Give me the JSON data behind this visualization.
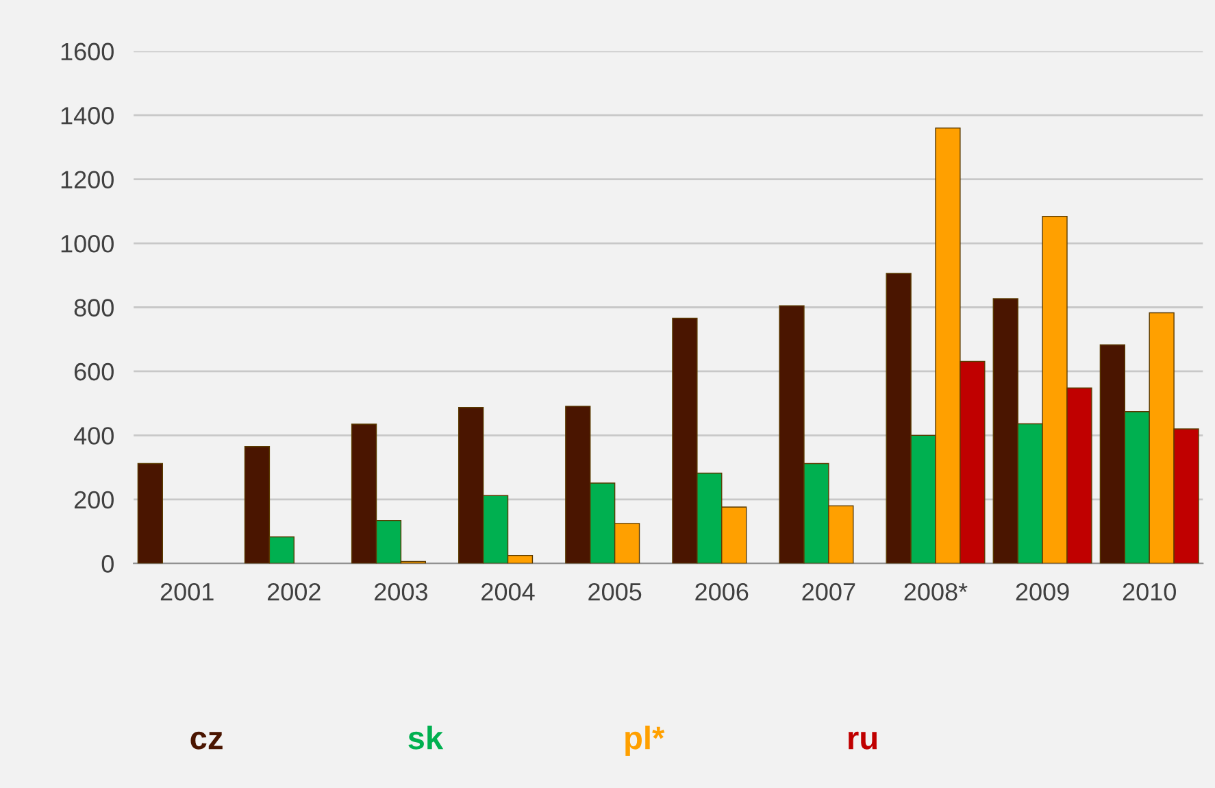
{
  "chart_data": {
    "type": "bar",
    "categories": [
      "2001",
      "2002",
      "2003",
      "2004",
      "2005",
      "2006",
      "2007",
      "2008*",
      "2009",
      "2010"
    ],
    "series": [
      {
        "name": "cz",
        "color": "#4a1500",
        "values": [
          312,
          365,
          435,
          487,
          491,
          766,
          805,
          906,
          827,
          683
        ]
      },
      {
        "name": "sk",
        "color": "#00b050",
        "values": [
          null,
          83,
          134,
          212,
          251,
          282,
          312,
          400,
          436,
          474
        ]
      },
      {
        "name": "pl*",
        "color": "#ffa000",
        "values": [
          null,
          null,
          6,
          25,
          125,
          176,
          180,
          1360,
          1084,
          783
        ]
      },
      {
        "name": "ru",
        "color": "#c00000",
        "values": [
          null,
          null,
          null,
          null,
          null,
          null,
          null,
          631,
          548,
          420
        ]
      }
    ],
    "ylim": [
      0,
      1600
    ],
    "yticks": [
      0,
      200,
      400,
      600,
      800,
      1000,
      1200,
      1400,
      1600
    ],
    "grid": "y",
    "legend": "bottom"
  }
}
